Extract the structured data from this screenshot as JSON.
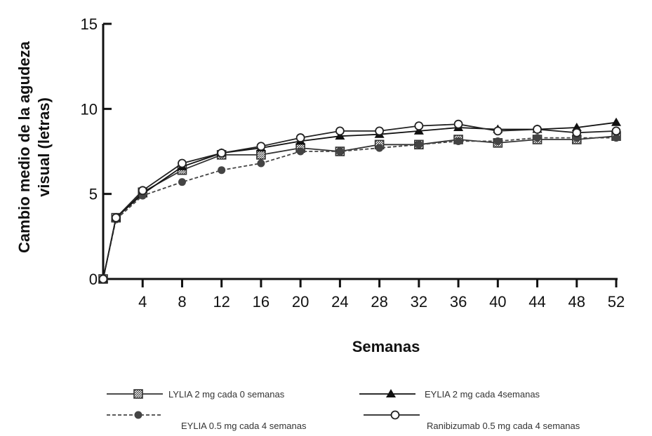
{
  "chart_data": {
    "type": "line",
    "title": "",
    "xlabel": "Semanas",
    "ylabel_line1": "Cambio medio de la agudeza",
    "ylabel_line2": "visual (letras)",
    "x_ticks": [
      4,
      8,
      12,
      16,
      20,
      24,
      28,
      32,
      36,
      40,
      44,
      48,
      52
    ],
    "x_tick_labels": [
      "4",
      "8",
      "12",
      "16",
      "20",
      "24",
      "28",
      "32",
      "36",
      "40",
      "44",
      "48",
      "52"
    ],
    "y_ticks": [
      0,
      5,
      10,
      15
    ],
    "y_tick_labels": [
      "0",
      "5",
      "10",
      "15"
    ],
    "xlim": [
      0,
      52
    ],
    "ylim": [
      0,
      15
    ],
    "grid": false,
    "legend_position": "bottom",
    "series": [
      {
        "name": "LYLIA 2 mg cada 0 semanas",
        "marker": "square-hatched",
        "line_style": "solid",
        "color": "#333333",
        "points": [
          [
            0,
            0
          ],
          [
            1.3,
            3.6
          ],
          [
            4,
            5.1
          ],
          [
            8,
            6.4
          ],
          [
            12,
            7.3
          ],
          [
            16,
            7.3
          ],
          [
            20,
            7.7
          ],
          [
            24,
            7.5
          ],
          [
            28,
            7.9
          ],
          [
            32,
            7.9
          ],
          [
            36,
            8.2
          ],
          [
            40,
            8.0
          ],
          [
            44,
            8.2
          ],
          [
            48,
            8.2
          ],
          [
            52,
            8.4
          ]
        ]
      },
      {
        "name": "EYLIA 2 mg cada 4semanas",
        "marker": "triangle",
        "line_style": "solid",
        "color": "#111111",
        "points": [
          [
            0,
            0
          ],
          [
            1.3,
            3.6
          ],
          [
            4,
            5.0
          ],
          [
            8,
            6.6
          ],
          [
            12,
            7.4
          ],
          [
            16,
            7.7
          ],
          [
            20,
            8.1
          ],
          [
            24,
            8.4
          ],
          [
            28,
            8.5
          ],
          [
            32,
            8.7
          ],
          [
            36,
            8.9
          ],
          [
            40,
            8.8
          ],
          [
            44,
            8.8
          ],
          [
            48,
            8.9
          ],
          [
            52,
            9.2
          ]
        ]
      },
      {
        "name": "EYLIA 0.5 mg cada 4 semanas",
        "marker": "circle-filled",
        "line_style": "dashed",
        "color": "#444444",
        "points": [
          [
            0,
            0
          ],
          [
            1.3,
            3.5
          ],
          [
            4,
            4.9
          ],
          [
            8,
            5.7
          ],
          [
            12,
            6.4
          ],
          [
            16,
            6.8
          ],
          [
            20,
            7.5
          ],
          [
            24,
            7.5
          ],
          [
            28,
            7.7
          ],
          [
            32,
            7.9
          ],
          [
            36,
            8.1
          ],
          [
            40,
            8.1
          ],
          [
            44,
            8.3
          ],
          [
            48,
            8.3
          ],
          [
            52,
            8.3
          ]
        ]
      },
      {
        "name": "Ranibizumab 0.5 mg cada 4 semanas",
        "marker": "circle-open",
        "line_style": "solid",
        "color": "#222222",
        "points": [
          [
            0,
            0
          ],
          [
            1.3,
            3.6
          ],
          [
            4,
            5.2
          ],
          [
            8,
            6.8
          ],
          [
            12,
            7.4
          ],
          [
            16,
            7.8
          ],
          [
            20,
            8.3
          ],
          [
            24,
            8.7
          ],
          [
            28,
            8.7
          ],
          [
            32,
            9.0
          ],
          [
            36,
            9.1
          ],
          [
            40,
            8.7
          ],
          [
            44,
            8.8
          ],
          [
            48,
            8.6
          ],
          [
            52,
            8.7
          ]
        ]
      }
    ]
  }
}
